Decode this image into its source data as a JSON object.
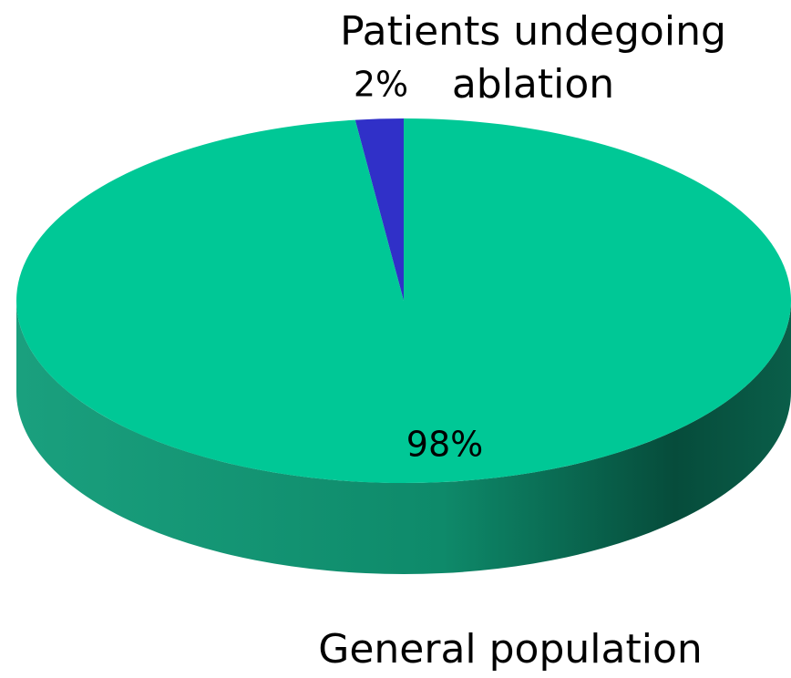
{
  "chart_data": {
    "type": "pie",
    "categories": [
      "Patients undegoing ablation",
      "General population"
    ],
    "values": [
      2,
      98
    ],
    "value_labels": [
      "2%",
      "98%"
    ],
    "colors": [
      "#3030c8",
      "#00c896"
    ]
  }
}
